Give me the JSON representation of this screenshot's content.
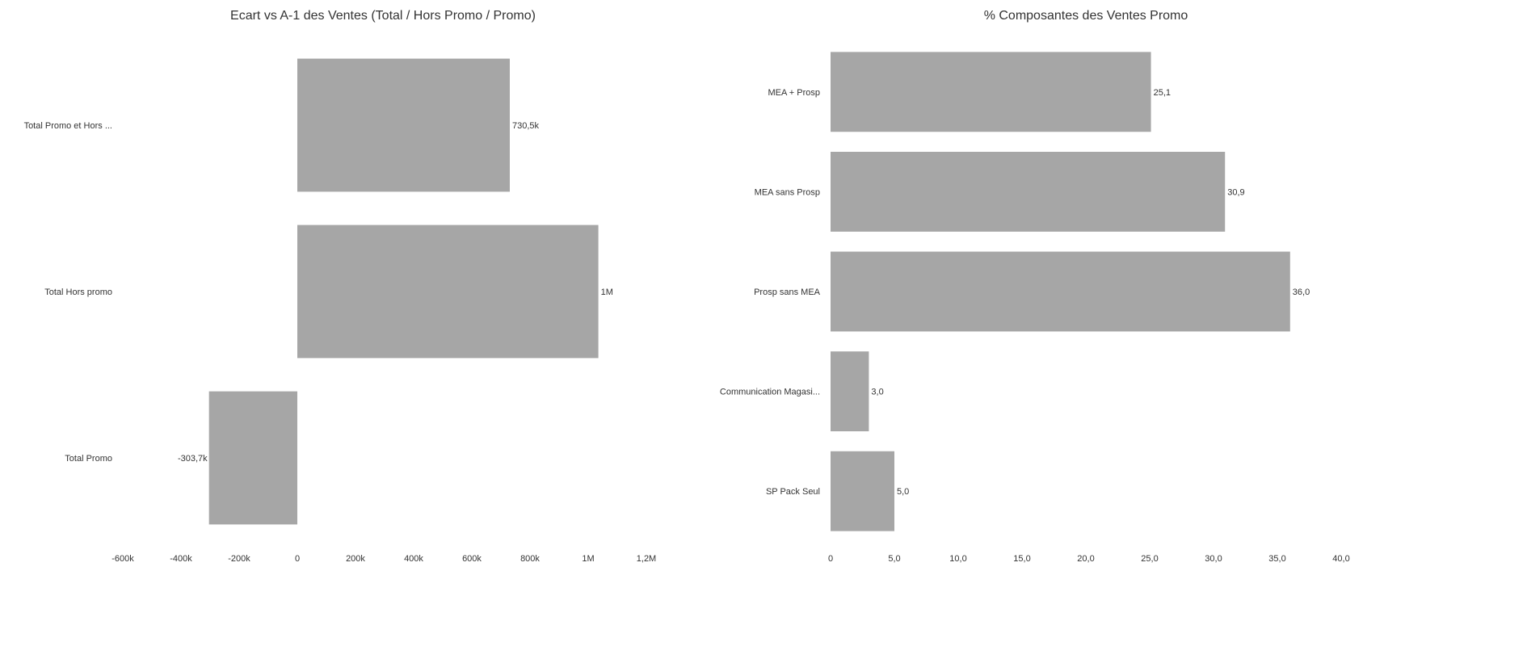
{
  "chart_data": [
    {
      "type": "bar",
      "orientation": "horizontal",
      "title": "Ecart vs A-1 des Ventes (Total / Hors Promo / Promo)",
      "categories": [
        "Total Promo et Hors ...",
        "Total Hors promo",
        "Total Promo"
      ],
      "values": [
        730500,
        1035000,
        -303700
      ],
      "data_labels": [
        "730,5k",
        "1M",
        "-303,7k"
      ],
      "xlim": [
        -600000,
        1200000
      ],
      "ticks": [
        -600000,
        -400000,
        -200000,
        0,
        200000,
        400000,
        600000,
        800000,
        1000000,
        1200000
      ],
      "tick_labels": [
        "-600k",
        "-400k",
        "-200k",
        "0",
        "200k",
        "400k",
        "600k",
        "800k",
        "1M",
        "1,2M"
      ],
      "bar_color": "#a6a6a6",
      "grid": false,
      "legend": "none"
    },
    {
      "type": "bar",
      "orientation": "horizontal",
      "title": "% Composantes des Ventes Promo",
      "categories": [
        "MEA + Prosp",
        "MEA sans Prosp",
        "Prosp sans MEA",
        "Communication Magasi...",
        "SP Pack Seul"
      ],
      "values": [
        25.1,
        30.9,
        36.0,
        3.0,
        5.0
      ],
      "data_labels": [
        "25,1",
        "30,9",
        "36,0",
        "3,0",
        "5,0"
      ],
      "xlim": [
        0,
        40
      ],
      "ticks": [
        0,
        5,
        10,
        15,
        20,
        25,
        30,
        35,
        40
      ],
      "tick_labels": [
        "0",
        "5,0",
        "10,0",
        "15,0",
        "20,0",
        "25,0",
        "30,0",
        "35,0",
        "40,0"
      ],
      "bar_color": "#a6a6a6",
      "grid": false,
      "legend": "none"
    }
  ]
}
